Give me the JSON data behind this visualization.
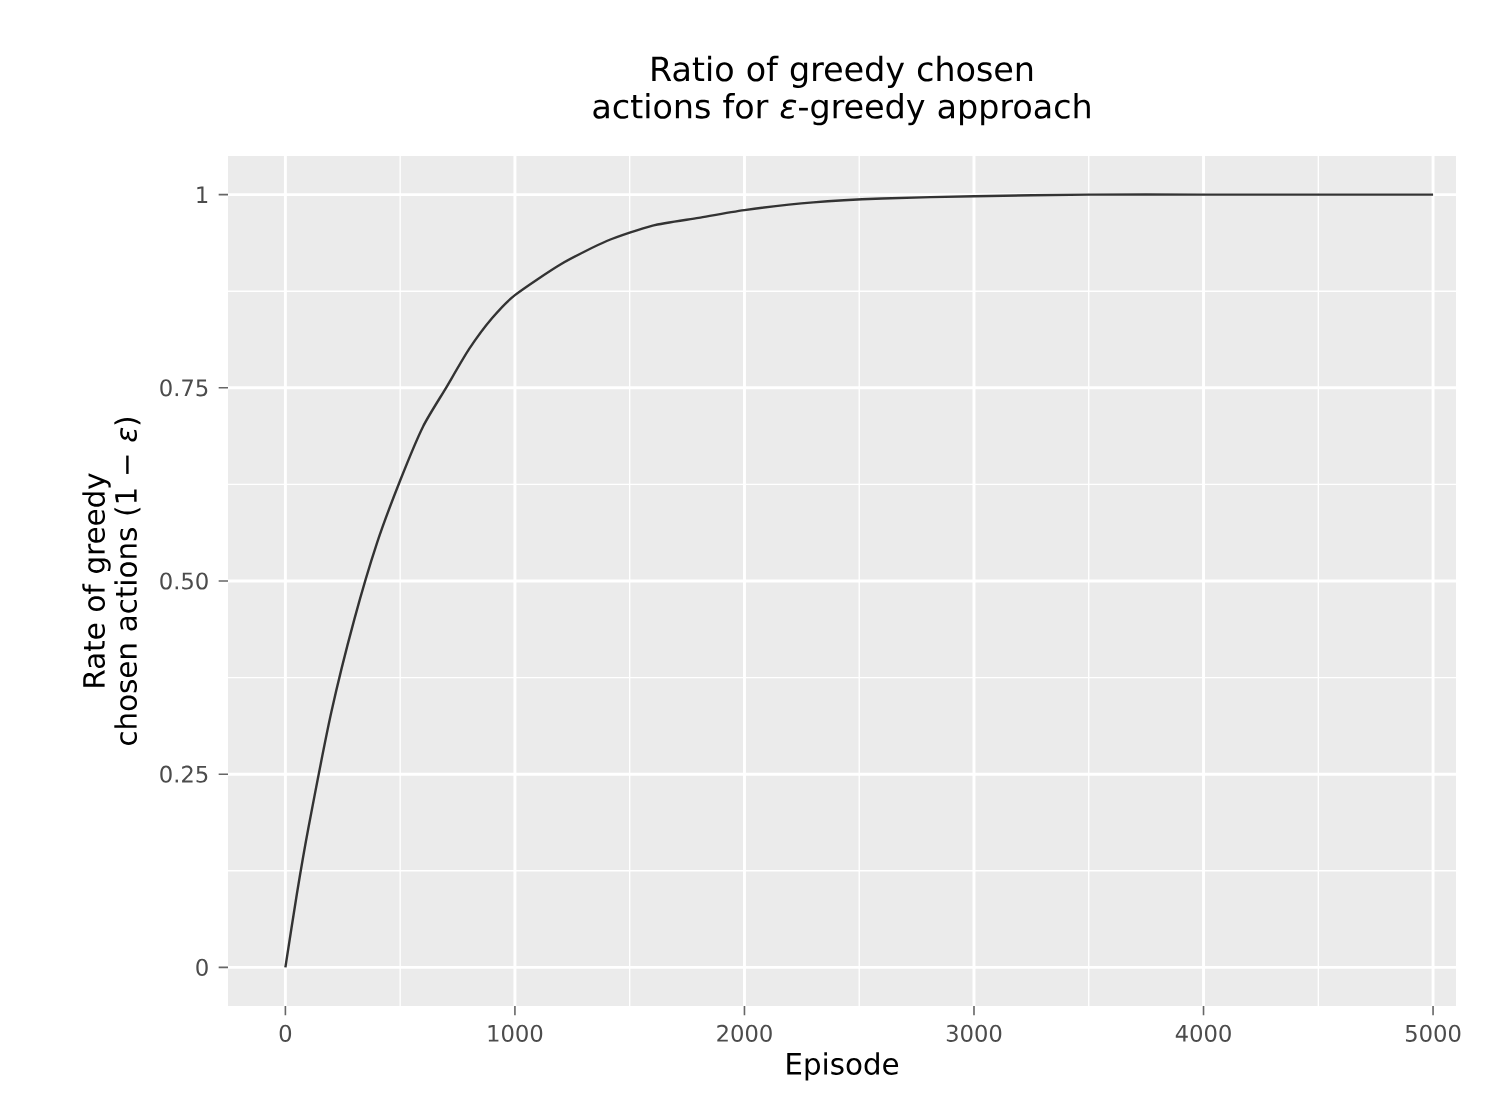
{
  "chart_data": {
    "type": "line",
    "title": "Ratio of greedy chosen actions for *ε*-greedy approach",
    "xlabel": "Episode",
    "ylabel": "Rate of greedy chosen actions (1 − *ε*)",
    "x": [
      0,
      50,
      100,
      200,
      300,
      400,
      500,
      600,
      700,
      800,
      900,
      1000,
      1200,
      1400,
      1600,
      1800,
      2000,
      2300,
      2600,
      3000,
      3500,
      4000,
      4500,
      5000
    ],
    "series": [
      {
        "color": "#333333",
        "values": [
          0,
          0.095,
          0.18,
          0.33,
          0.45,
          0.55,
          0.63,
          0.7,
          0.75,
          0.8,
          0.84,
          0.87,
          0.91,
          0.94,
          0.96,
          0.97,
          0.98,
          0.99,
          0.995,
          0.998,
          1,
          1,
          1,
          1
        ]
      }
    ],
    "xlim": [
      -250,
      5100
    ],
    "ylim": [
      -0.05,
      1.05
    ],
    "xticks": [
      0,
      1000,
      2000,
      3000,
      4000,
      5000
    ],
    "yticks": [
      0,
      0.25,
      {
        "value": 0.5,
        "label": "0.50"
      },
      0.75,
      1
    ],
    "grid": true
  }
}
